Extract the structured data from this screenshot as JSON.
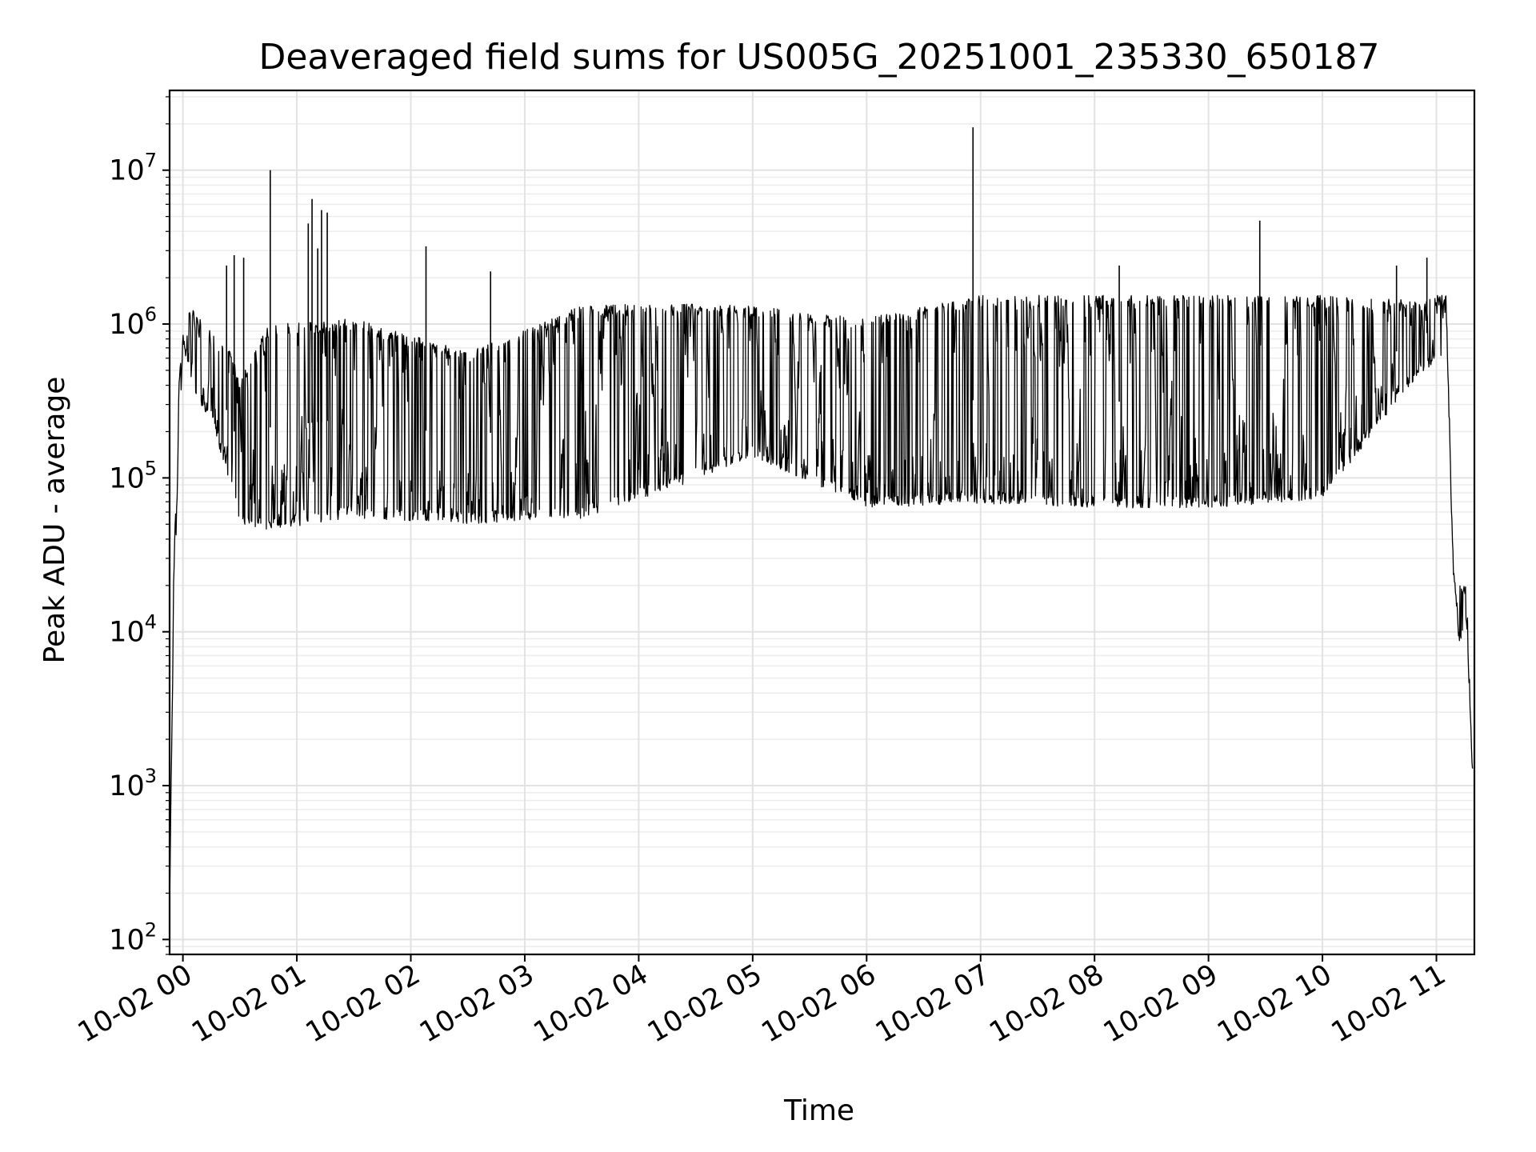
{
  "chart_data": {
    "type": "line",
    "title": "Deaveraged field sums for US005G_20251001_235330_650187",
    "xlabel": "Time",
    "ylabel": "Peak ADU - average",
    "yscale": "log",
    "ylim": [
      80,
      33000000
    ],
    "xlim": [
      "2025-10-01 23:53:00",
      "2025-10-02 11:20:00"
    ],
    "grid": true,
    "line_color": "#000000",
    "x_ticks": [
      {
        "value": "2025-10-02 00:00",
        "label": "10-02 00"
      },
      {
        "value": "2025-10-02 01:00",
        "label": "10-02 01"
      },
      {
        "value": "2025-10-02 02:00",
        "label": "10-02 02"
      },
      {
        "value": "2025-10-02 03:00",
        "label": "10-02 03"
      },
      {
        "value": "2025-10-02 04:00",
        "label": "10-02 04"
      },
      {
        "value": "2025-10-02 05:00",
        "label": "10-02 05"
      },
      {
        "value": "2025-10-02 06:00",
        "label": "10-02 06"
      },
      {
        "value": "2025-10-02 07:00",
        "label": "10-02 07"
      },
      {
        "value": "2025-10-02 08:00",
        "label": "10-02 08"
      },
      {
        "value": "2025-10-02 09:00",
        "label": "10-02 09"
      },
      {
        "value": "2025-10-02 10:00",
        "label": "10-02 10"
      },
      {
        "value": "2025-10-02 11:00",
        "label": "10-02 11"
      }
    ],
    "y_ticks": [
      {
        "value": 100,
        "base": "10",
        "exp": "2"
      },
      {
        "value": 1000,
        "base": "10",
        "exp": "3"
      },
      {
        "value": 10000,
        "base": "10",
        "exp": "4"
      },
      {
        "value": 100000,
        "base": "10",
        "exp": "5"
      },
      {
        "value": 1000000,
        "base": "10",
        "exp": "6"
      },
      {
        "value": 10000000,
        "base": "10",
        "exp": "7"
      }
    ],
    "envelope": [
      {
        "x": "2025-10-01 23:53",
        "low": 150,
        "high": 150
      },
      {
        "x": "2025-10-01 23:55",
        "low": 12000,
        "high": 19000
      },
      {
        "x": "2025-10-01 23:58",
        "low": 180000,
        "high": 400000
      },
      {
        "x": "2025-10-02 00:00",
        "low": 800000,
        "high": 1300000
      },
      {
        "x": "2025-10-02 00:05",
        "low": 400000,
        "high": 1200000
      },
      {
        "x": "2025-10-02 00:15",
        "low": 250000,
        "high": 800000
      },
      {
        "x": "2025-10-02 00:25",
        "low": 100000,
        "high": 600000
      },
      {
        "x": "2025-10-02 00:30",
        "low": 55000,
        "high": 400000
      },
      {
        "x": "2025-10-02 00:45",
        "low": 50000,
        "high": 900000
      },
      {
        "x": "2025-10-02 01:30",
        "low": 60000,
        "high": 1000000
      },
      {
        "x": "2025-10-02 02:30",
        "low": 55000,
        "high": 600000
      },
      {
        "x": "2025-10-02 03:30",
        "low": 60000,
        "high": 1200000
      },
      {
        "x": "2025-10-02 04:15",
        "low": 90000,
        "high": 1250000
      },
      {
        "x": "2025-10-02 05:00",
        "low": 150000,
        "high": 1200000
      },
      {
        "x": "2025-10-02 06:00",
        "low": 70000,
        "high": 1000000
      },
      {
        "x": "2025-10-02 07:00",
        "low": 75000,
        "high": 1400000
      },
      {
        "x": "2025-10-02 08:00",
        "low": 70000,
        "high": 1400000
      },
      {
        "x": "2025-10-02 09:00",
        "low": 70000,
        "high": 1400000
      },
      {
        "x": "2025-10-02 10:00",
        "low": 80000,
        "high": 1400000
      },
      {
        "x": "2025-10-02 10:50",
        "low": 500000,
        "high": 1300000
      },
      {
        "x": "2025-10-02 11:05",
        "low": 700000,
        "high": 1500000
      },
      {
        "x": "2025-10-02 11:09",
        "low": 25000,
        "high": 25000
      },
      {
        "x": "2025-10-02 11:12",
        "low": 9000,
        "high": 20000
      },
      {
        "x": "2025-10-02 11:16",
        "low": 12000,
        "high": 18000
      },
      {
        "x": "2025-10-02 11:19",
        "low": 1200,
        "high": 1200
      }
    ],
    "spikes": [
      {
        "x": "2025-10-02 00:23",
        "y": 2400000
      },
      {
        "x": "2025-10-02 00:27",
        "y": 2800000
      },
      {
        "x": "2025-10-02 00:32",
        "y": 2700000
      },
      {
        "x": "2025-10-02 00:46",
        "y": 10000000
      },
      {
        "x": "2025-10-02 01:06",
        "y": 4500000
      },
      {
        "x": "2025-10-02 01:08",
        "y": 6500000
      },
      {
        "x": "2025-10-02 01:11",
        "y": 3100000
      },
      {
        "x": "2025-10-02 01:13",
        "y": 5500000
      },
      {
        "x": "2025-10-02 01:16",
        "y": 5300000
      },
      {
        "x": "2025-10-02 02:08",
        "y": 3200000
      },
      {
        "x": "2025-10-02 02:42",
        "y": 2200000
      },
      {
        "x": "2025-10-02 06:56",
        "y": 19000000
      },
      {
        "x": "2025-10-02 08:13",
        "y": 2400000
      },
      {
        "x": "2025-10-02 09:27",
        "y": 4700000
      },
      {
        "x": "2025-10-02 10:39",
        "y": 2400000
      },
      {
        "x": "2025-10-02 10:55",
        "y": 2700000
      }
    ]
  }
}
